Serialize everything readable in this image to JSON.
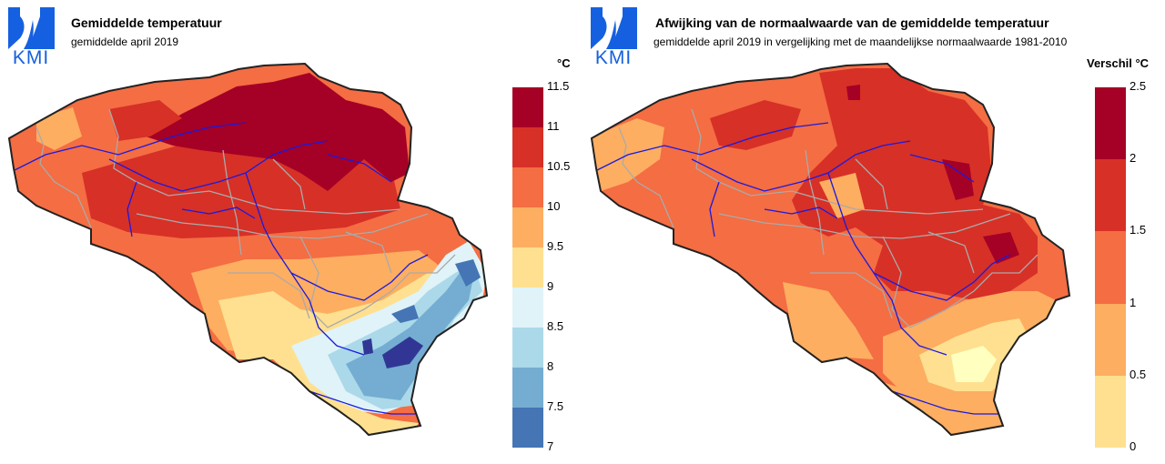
{
  "logo": {
    "text": "KMI",
    "color": "#1560e0"
  },
  "left_panel": {
    "title": "Gemiddelde temperatuur",
    "subtitle": "gemiddelde april 2019",
    "unit_label": "°C",
    "legend": {
      "labels": [
        "11.5",
        "11",
        "10.5",
        "10",
        "9.5",
        "9",
        "8.5",
        "8",
        "7.5",
        "7"
      ],
      "colors": [
        "#a50026",
        "#d73027",
        "#f46d43",
        "#fdae61",
        "#fee090",
        "#ffffbf",
        "#e0f3f8",
        "#abd9e9",
        "#74add1",
        "#4575b4",
        "#313695"
      ]
    }
  },
  "right_panel": {
    "title": "Afwijking van de normaalwaarde van de gemiddelde temperatuur",
    "subtitle": "gemiddelde april 2019 in vergelijking met de maandelijkse normaalwaarde 1981-2010",
    "unit_label": "Verschil °C",
    "legend": {
      "labels": [
        "2.5",
        "2",
        "1.5",
        "1",
        "0.5",
        "0"
      ],
      "colors": [
        "#a50026",
        "#d73027",
        "#f46d43",
        "#fdae61",
        "#fee090",
        "#ffffbf"
      ]
    }
  },
  "colors": {
    "border": "#222222",
    "province_lines": "#aaaaaa",
    "rivers": "#1a1adf"
  }
}
